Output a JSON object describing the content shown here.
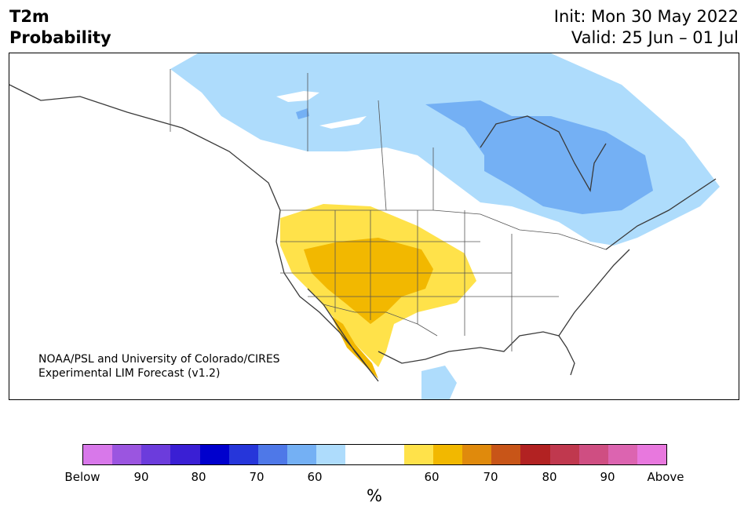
{
  "header": {
    "title_line1": "T2m",
    "title_line2": "Probability",
    "init": "Init: Mon 30 May 2022",
    "valid": "Valid: 25 Jun – 01 Jul"
  },
  "map": {
    "credit_line1": "NOAA/PSL and University of Colorado/CIRES",
    "credit_line2": "Experimental LIM Forecast (v1.2)"
  },
  "colorbar": {
    "colors": [
      "#d878ea",
      "#9b55e0",
      "#6c3cdc",
      "#3a1fd4",
      "#0000cd",
      "#2636da",
      "#4e78e8",
      "#74b0f4",
      "#aedcfc",
      "#ffffff",
      "#ffffff",
      "#ffe24a",
      "#f2b800",
      "#e08a0c",
      "#c85518",
      "#b22222",
      "#c0384e",
      "#cf4e82",
      "#dc64b0",
      "#e878de"
    ],
    "tick_labels": [
      "Below",
      "90",
      "80",
      "70",
      "60",
      "60",
      "70",
      "80",
      "90",
      "Above"
    ],
    "unit": "%"
  }
}
